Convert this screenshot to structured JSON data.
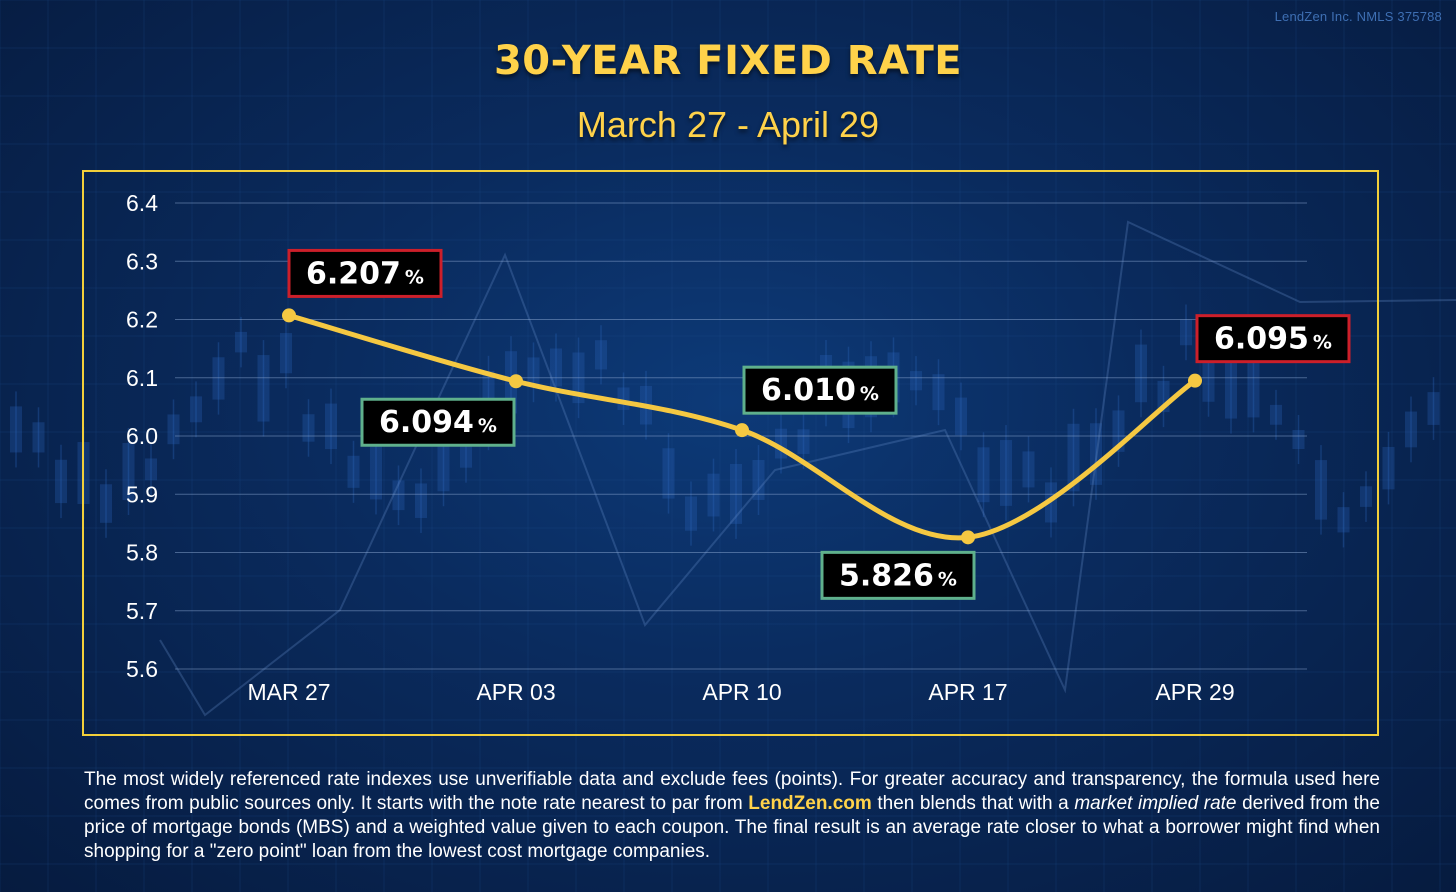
{
  "brand": "LendZen Inc. NMLS 375788",
  "colors": {
    "accent": "#ffd24a",
    "frame": "#f2cf3a",
    "up_box": "#cc1f2a",
    "down_box": "#5fb08c",
    "label_bg": "#000000"
  },
  "chart_data": {
    "type": "line",
    "title": "30-YEAR FIXED RATE",
    "subtitle": "March 27 - April 29",
    "categories": [
      "MAR 27",
      "APR 03",
      "APR 10",
      "APR 17",
      "APR 29"
    ],
    "values": [
      6.207,
      6.094,
      6.01,
      5.826,
      6.095
    ],
    "yticks": [
      "6.4",
      "6.3",
      "6.2",
      "6.1",
      "6.0",
      "5.9",
      "5.8",
      "5.7",
      "5.6"
    ],
    "ylim": [
      5.6,
      6.4
    ],
    "xlabel": "",
    "ylabel": "",
    "grid": true,
    "data_labels": [
      {
        "value": "6.207",
        "unit": "%",
        "style": "up",
        "side": "above"
      },
      {
        "value": "6.094",
        "unit": "%",
        "style": "down",
        "side": "below-left"
      },
      {
        "value": "6.010",
        "unit": "%",
        "style": "down",
        "side": "above-right"
      },
      {
        "value": "5.826",
        "unit": "%",
        "style": "down",
        "side": "below"
      },
      {
        "value": "6.095",
        "unit": "%",
        "style": "up",
        "side": "above-right"
      }
    ]
  },
  "footnote": {
    "part1": "The most widely referenced rate indexes use unverifiable data and exclude fees (points). For greater accuracy and transparency, the formula used here comes from public sources only. It starts with the note rate nearest to par from ",
    "link": "LendZen.com",
    "part2": " then blends that with a ",
    "emphasis": "market implied rate",
    "part3": " derived from the price of mortgage bonds (MBS) and a weighted value given to each coupon. The final result is an average rate closer to what a borrower might find when shopping for a \"zero point\" loan from the lowest cost mortgage companies."
  }
}
